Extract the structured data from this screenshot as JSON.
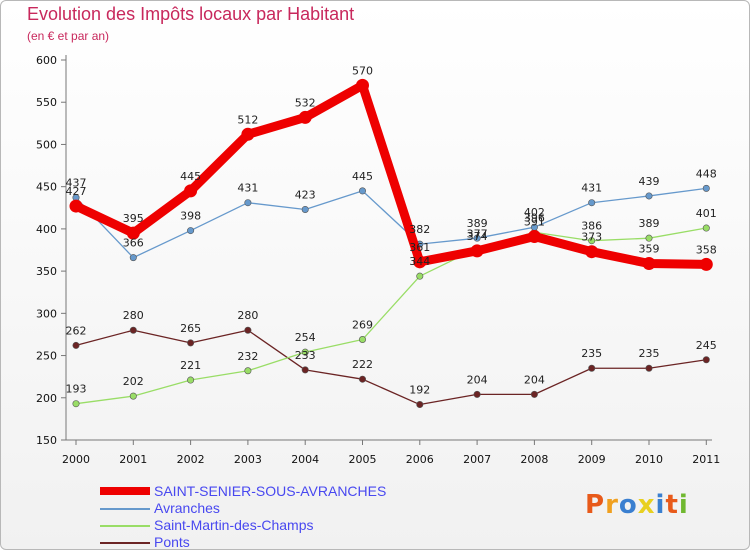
{
  "header": {
    "title": "Evolution des Impôts locaux par Habitant",
    "subtitle": "(en € et par an)"
  },
  "logo": {
    "text": "Proxiti",
    "colors": [
      "#e85a1a",
      "#f0a020",
      "#3a7fd0",
      "#e8d020",
      "#3a7fd0",
      "#e85a1a",
      "#70b830"
    ]
  },
  "chart_data": {
    "type": "line",
    "title": "Evolution des Impôts locaux par Habitant",
    "subtitle": "(en € et par an)",
    "xlabel": "",
    "ylabel": "",
    "ylim": [
      150,
      600
    ],
    "yticks": [
      150,
      200,
      250,
      300,
      350,
      400,
      450,
      500,
      550,
      600
    ],
    "categories": [
      "2000",
      "2001",
      "2002",
      "2003",
      "2004",
      "2005",
      "2006",
      "2007",
      "2008",
      "2009",
      "2010",
      "2011"
    ],
    "series": [
      {
        "name": "SAINT-SENIER-SOUS-AVRANCHES",
        "color": "#ee0000",
        "values": [
          427,
          395,
          445,
          512,
          532,
          570,
          361,
          374,
          391,
          373,
          359,
          358
        ]
      },
      {
        "name": "Avranches",
        "color": "#6699cc",
        "values": [
          437,
          366,
          398,
          431,
          423,
          445,
          382,
          389,
          402,
          431,
          439,
          448
        ]
      },
      {
        "name": "Saint-Martin-des-Champs",
        "color": "#99dd66",
        "values": [
          193,
          202,
          221,
          232,
          254,
          269,
          344,
          377,
          396,
          386,
          389,
          401
        ]
      },
      {
        "name": "Ponts",
        "color": "#6b2424",
        "values": [
          262,
          280,
          265,
          280,
          233,
          222,
          192,
          204,
          204,
          235,
          235,
          245
        ]
      }
    ]
  }
}
